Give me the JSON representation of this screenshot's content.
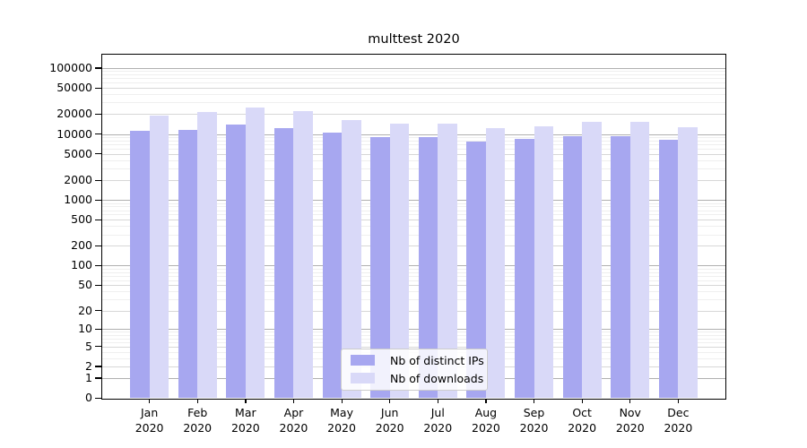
{
  "chart_data": {
    "type": "bar",
    "title": "multtest 2020",
    "categories": [
      "Jan",
      "Feb",
      "Mar",
      "Apr",
      "May",
      "Jun",
      "Jul",
      "Aug",
      "Sep",
      "Oct",
      "Nov",
      "Dec"
    ],
    "x_sublabel": "2020",
    "series": [
      {
        "name": "Nb of distinct IPs",
        "color": "#a7a7f0",
        "values": [
          11200,
          11700,
          14100,
          12400,
          10600,
          9100,
          8900,
          7800,
          8400,
          9400,
          9400,
          8200
        ]
      },
      {
        "name": "Nb of downloads",
        "color": "#d9d9f8",
        "values": [
          19200,
          21700,
          25200,
          22000,
          16400,
          14600,
          14200,
          12200,
          13200,
          15300,
          15300,
          12800
        ]
      }
    ],
    "yscale": "log1p",
    "ylim": [
      0,
      170000
    ],
    "y_ticks": [
      0,
      1,
      2,
      5,
      10,
      20,
      50,
      100,
      200,
      500,
      1000,
      2000,
      5000,
      10000,
      20000,
      50000,
      100000
    ],
    "grid": true,
    "legend_position": "lower center",
    "colors": {
      "grid_major": "#b0b0b0",
      "grid_mid": "#d7d7d7",
      "grid_minor": "#efefef",
      "axis": "#000000",
      "text": "#000000"
    }
  }
}
